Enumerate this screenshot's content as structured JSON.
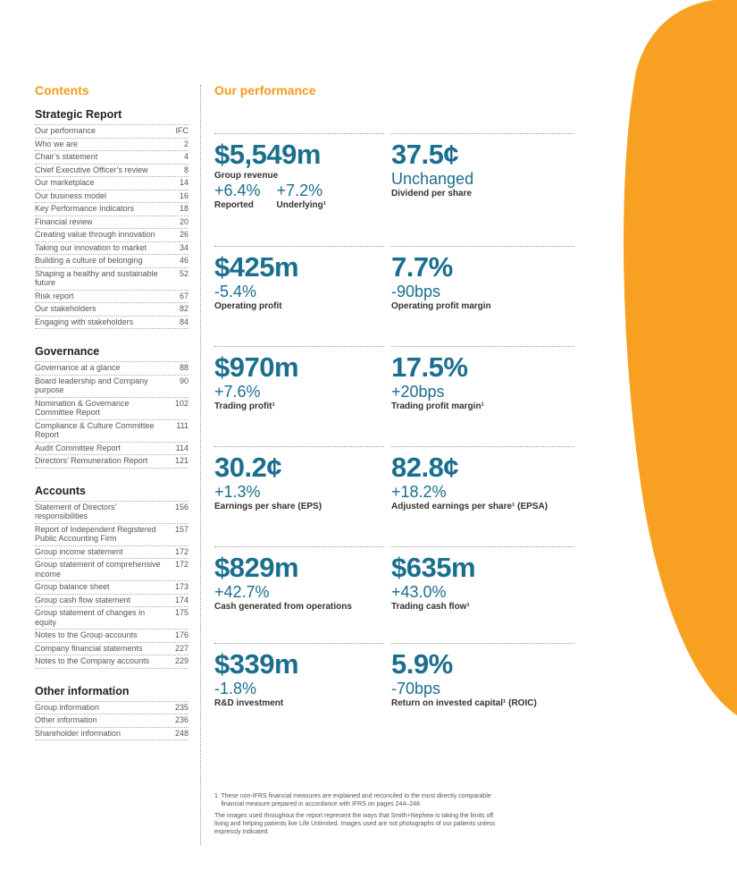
{
  "colors": {
    "accent_orange": "#f7a021",
    "heading_orange": "#f39b1c",
    "metric_blue": "#1a6e8e"
  },
  "contents": {
    "title": "Contents",
    "sections": [
      {
        "title": "Strategic Report",
        "items": [
          {
            "label": "Our performance",
            "page": "IFC"
          },
          {
            "label": "Who we are",
            "page": "2"
          },
          {
            "label": "Chair’s statement",
            "page": "4"
          },
          {
            "label": "Chief Executive Officer’s review",
            "page": "8"
          },
          {
            "label": "Our marketplace",
            "page": "14"
          },
          {
            "label": "Our business model",
            "page": "16"
          },
          {
            "label": "Key Performance Indicators",
            "page": "18"
          },
          {
            "label": "Financial review",
            "page": "20"
          },
          {
            "label": "Creating value through innovation",
            "page": "26"
          },
          {
            "label": "Taking our innovation to market",
            "page": "34"
          },
          {
            "label": "Building a culture of belonging",
            "page": "46"
          },
          {
            "label": "Shaping a healthy and sustainable future",
            "page": "52"
          },
          {
            "label": "Risk report",
            "page": "67"
          },
          {
            "label": "Our stakeholders",
            "page": "82"
          },
          {
            "label": "Engaging with stakeholders",
            "page": "84"
          }
        ]
      },
      {
        "title": "Governance",
        "items": [
          {
            "label": "Governance at a glance",
            "page": "88"
          },
          {
            "label": "Board leadership and Company purpose",
            "page": "90"
          },
          {
            "label": "Nomination & Governance Committee Report",
            "page": "102"
          },
          {
            "label": "Compliance & Culture Committee Report",
            "page": "111"
          },
          {
            "label": "Audit Committee Report",
            "page": "114"
          },
          {
            "label": "Directors’ Remuneration Report",
            "page": "121"
          }
        ]
      },
      {
        "title": "Accounts",
        "items": [
          {
            "label": "Statement of Directors’ responsibilities",
            "page": "156"
          },
          {
            "label": "Report of Independent Registered Public Accounting Firm",
            "page": "157"
          },
          {
            "label": "Group income statement",
            "page": "172"
          },
          {
            "label": "Group statement of comprehensive income",
            "page": "172"
          },
          {
            "label": "Group balance sheet",
            "page": "173"
          },
          {
            "label": "Group cash flow statement",
            "page": "174"
          },
          {
            "label": "Group statement of changes in equity",
            "page": "175"
          },
          {
            "label": "Notes to the Group accounts",
            "page": "176"
          },
          {
            "label": "Company financial statements",
            "page": "227"
          },
          {
            "label": "Notes to the Company accounts",
            "page": "229"
          }
        ]
      },
      {
        "title": "Other information",
        "items": [
          {
            "label": "Group information",
            "page": "235"
          },
          {
            "label": "Other information",
            "page": "236"
          },
          {
            "label": "Shareholder information",
            "page": "248"
          }
        ]
      }
    ]
  },
  "performance": {
    "title": "Our performance",
    "revenue": {
      "value": "$5,549m",
      "label": "Group revenue",
      "reported_change": "+6.4%",
      "reported_label": "Reported",
      "underlying_change": "+7.2%",
      "underlying_label": "Underlying¹"
    },
    "dividend": {
      "value": "37.5¢",
      "change": "Unchanged",
      "label": "Dividend per share"
    },
    "op_profit": {
      "value": "$425m",
      "change": "-5.4%",
      "label": "Operating profit"
    },
    "op_margin": {
      "value": "7.7%",
      "change": "-90bps",
      "label": "Operating profit margin"
    },
    "trading_profit": {
      "value": "$970m",
      "change": "+7.6%",
      "label": "Trading profit¹"
    },
    "trading_margin": {
      "value": "17.5%",
      "change": "+20bps",
      "label": "Trading profit margin¹"
    },
    "eps": {
      "value": "30.2¢",
      "change": "+1.3%",
      "label": "Earnings per share (EPS)"
    },
    "epsa": {
      "value": "82.8¢",
      "change": "+18.2%",
      "label": "Adjusted earnings per share¹ (EPSA)"
    },
    "cash_ops": {
      "value": "$829m",
      "change": "+42.7%",
      "label": "Cash generated from operations"
    },
    "trading_cash": {
      "value": "$635m",
      "change": "+43.0%",
      "label": "Trading cash flow¹"
    },
    "rnd": {
      "value": "$339m",
      "change": "-1.8%",
      "label": "R&D investment"
    },
    "roic": {
      "value": "5.9%",
      "change": "-70bps",
      "label": "Return on invested capital¹ (ROIC)"
    }
  },
  "footnotes": {
    "note_number": "1",
    "note_text": "These non-IFRS financial measures are explained and reconciled to the most directly comparable financial measure prepared in accordance with IFRS on pages 244–248.",
    "disclaimer": "The images used throughout the report represent the ways that Smith+Nephew is taking the limits off living and helping patients live Life Unlimited. Images used are not photographs of our patients unless expressly indicated."
  }
}
